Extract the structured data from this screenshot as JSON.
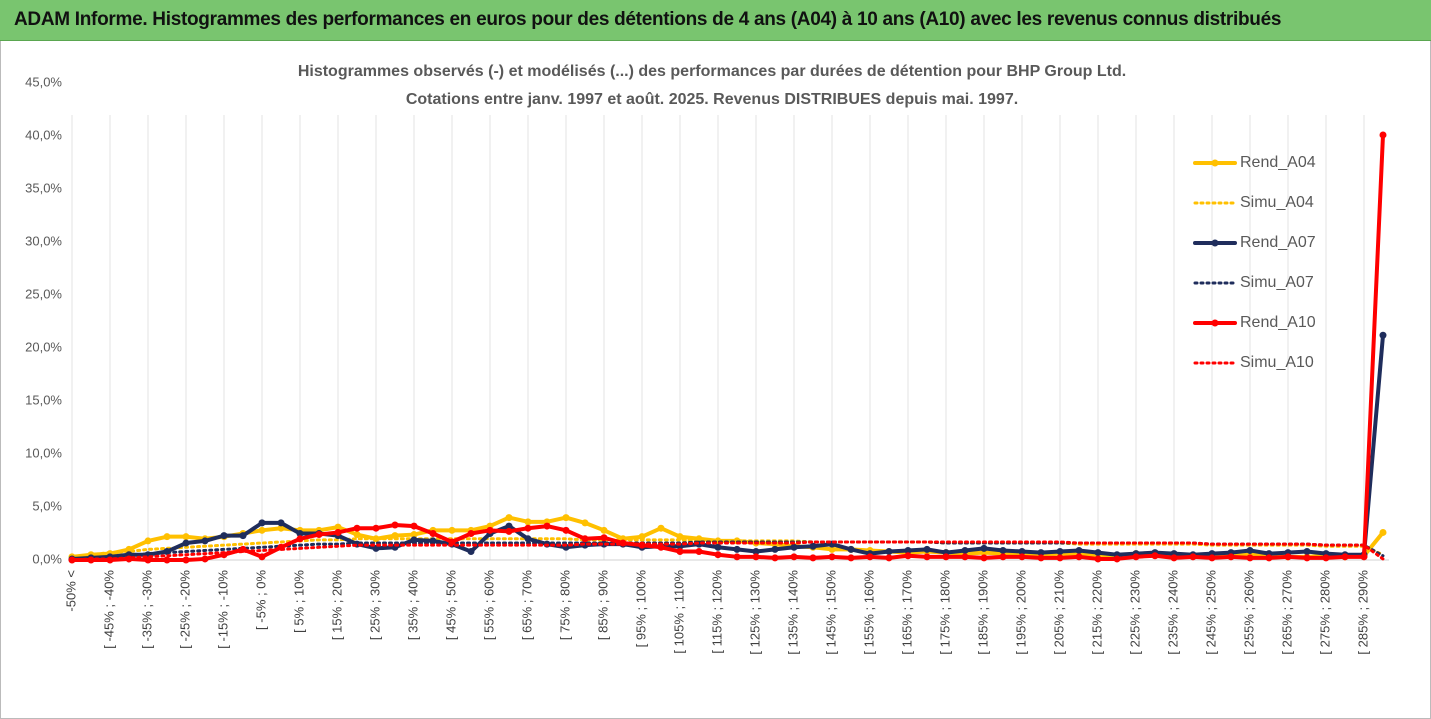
{
  "chart_data": {
    "type": "line",
    "header": "ADAM Informe. Histogrammes des performances en euros pour des détentions de 4 ans (A04) à 10 ans (A10) avec les revenus connus distribués",
    "title": "Histogrammes observés (-) et modélisés (...) des performances par durées de détention pour BHP Group Ltd.",
    "subtitle": "Cotations entre janv. 1997 et août. 2025. Revenus DISTRIBUES depuis mai. 1997.",
    "categories": [
      "-50% <",
      null,
      "[ -45% ; -40%",
      null,
      "[ -35% ; -30%",
      null,
      "[ -25% ; -20%",
      null,
      "[ -15% ; -10%",
      null,
      "[ -5% ; 0%",
      null,
      "[ 5% ; 10%",
      null,
      "[ 15% ; 20%",
      null,
      "[ 25% ; 30%",
      null,
      "[ 35% ; 40%",
      null,
      "[ 45% ; 50%",
      null,
      "[ 55% ; 60%",
      null,
      "[ 65% ; 70%",
      null,
      "[ 75% ; 80%",
      null,
      "[ 85% ; 90%",
      null,
      "[ 95% ; 100%",
      null,
      "[ 105% ; 110%",
      null,
      "[ 115% ; 120%",
      null,
      "[ 125% ; 130%",
      null,
      "[ 135% ; 140%",
      null,
      "[ 145% ; 150%",
      null,
      "[ 155% ; 160%",
      null,
      "[ 165% ; 170%",
      null,
      "[ 175% ; 180%",
      null,
      "[ 185% ; 190%",
      null,
      "[ 195% ; 200%",
      null,
      "[ 205% ; 210%",
      null,
      "[ 215% ; 220%",
      null,
      "[ 225% ; 230%",
      null,
      "[ 235% ; 240%",
      null,
      "[ 245% ; 250%",
      null,
      "[ 255% ; 260%",
      null,
      "[ 265% ; 270%",
      null,
      "[ 275% ; 280%",
      null,
      "[ 285% ; 290%",
      null
    ],
    "series": [
      {
        "name": "Rend_A04",
        "color": "#ffc000",
        "style": "solid",
        "marker": true,
        "values": [
          0.3,
          0.5,
          0.6,
          1.0,
          1.8,
          2.2,
          2.2,
          2.0,
          2.2,
          2.5,
          2.8,
          3.0,
          2.8,
          2.8,
          3.1,
          2.4,
          2.0,
          2.3,
          2.4,
          2.8,
          2.8,
          2.8,
          3.2,
          4.0,
          3.6,
          3.6,
          4.0,
          3.5,
          2.8,
          2.0,
          2.2,
          3.0,
          2.2,
          2.0,
          1.8,
          1.8,
          1.6,
          1.5,
          1.3,
          1.2,
          1.0,
          1.0,
          0.9,
          0.8,
          0.7,
          0.8,
          0.7,
          0.6,
          0.7,
          0.6,
          0.6,
          0.5,
          0.6,
          0.5,
          0.5,
          0.4,
          0.6,
          0.5,
          0.5,
          0.4,
          0.5,
          0.4,
          0.5,
          0.4,
          0.3,
          0.3,
          0.4,
          0.3,
          0.4,
          2.6
        ]
      },
      {
        "name": "Simu_A04",
        "color": "#ffc000",
        "style": "dotted",
        "marker": false,
        "values": [
          0.3,
          0.5,
          0.7,
          0.8,
          1.0,
          1.1,
          1.2,
          1.3,
          1.4,
          1.5,
          1.6,
          1.7,
          1.8,
          1.9,
          1.9,
          2.0,
          2.0,
          2.0,
          2.0,
          2.0,
          2.0,
          2.0,
          2.0,
          2.0,
          2.0,
          2.0,
          2.0,
          1.9,
          1.9,
          1.9,
          1.9,
          1.9,
          1.9,
          1.8,
          1.8,
          1.8,
          1.8,
          1.8,
          1.8,
          1.7,
          1.7,
          1.7,
          1.7,
          1.7,
          1.7,
          1.7,
          1.6,
          1.6,
          1.6,
          1.6,
          1.6,
          1.6,
          1.6,
          1.5,
          1.5,
          1.5,
          1.5,
          1.5,
          1.5,
          1.5,
          1.4,
          1.4,
          1.4,
          1.4,
          1.4,
          1.4,
          1.3,
          1.3,
          1.3,
          0.5
        ]
      },
      {
        "name": "Rend_A07",
        "color": "#1f2d5c",
        "style": "solid",
        "marker": true,
        "values": [
          0.1,
          0.2,
          0.3,
          0.5,
          0.5,
          0.8,
          1.6,
          1.8,
          2.3,
          2.3,
          3.5,
          3.5,
          2.5,
          2.5,
          2.3,
          1.5,
          1.1,
          1.2,
          1.9,
          1.8,
          1.5,
          0.8,
          2.5,
          3.2,
          2.0,
          1.5,
          1.2,
          1.4,
          1.5,
          1.5,
          1.2,
          1.3,
          1.3,
          1.5,
          1.2,
          1.0,
          0.8,
          1.0,
          1.2,
          1.3,
          1.5,
          1.0,
          0.6,
          0.8,
          0.9,
          1.0,
          0.7,
          0.9,
          1.1,
          0.9,
          0.8,
          0.7,
          0.8,
          0.9,
          0.7,
          0.5,
          0.6,
          0.7,
          0.6,
          0.5,
          0.6,
          0.7,
          0.9,
          0.6,
          0.7,
          0.8,
          0.6,
          0.5,
          0.5,
          21.2
        ]
      },
      {
        "name": "Simu_A07",
        "color": "#1f2d5c",
        "style": "dotted",
        "marker": false,
        "values": [
          0.1,
          0.2,
          0.3,
          0.4,
          0.6,
          0.7,
          0.8,
          0.9,
          1.0,
          1.1,
          1.2,
          1.3,
          1.4,
          1.5,
          1.5,
          1.6,
          1.6,
          1.6,
          1.6,
          1.6,
          1.6,
          1.6,
          1.6,
          1.6,
          1.6,
          1.6,
          1.6,
          1.6,
          1.6,
          1.6,
          1.6,
          1.6,
          1.6,
          1.7,
          1.7,
          1.7,
          1.7,
          1.7,
          1.7,
          1.7,
          1.7,
          1.7,
          1.7,
          1.7,
          1.7,
          1.7,
          1.6,
          1.6,
          1.6,
          1.6,
          1.6,
          1.6,
          1.6,
          1.6,
          1.6,
          1.6,
          1.6,
          1.6,
          1.6,
          1.6,
          1.5,
          1.5,
          1.5,
          1.5,
          1.5,
          1.5,
          1.4,
          1.4,
          1.4,
          0.4
        ]
      },
      {
        "name": "Rend_A10",
        "color": "#ff0000",
        "style": "solid",
        "marker": true,
        "values": [
          0,
          0,
          0,
          0.1,
          0,
          0,
          0,
          0.1,
          0.5,
          1.0,
          0.3,
          1.2,
          2.0,
          2.4,
          2.6,
          3.0,
          3.0,
          3.3,
          3.2,
          2.5,
          1.7,
          2.5,
          2.8,
          2.7,
          3.0,
          3.2,
          2.8,
          2.0,
          2.1,
          1.6,
          1.4,
          1.2,
          0.8,
          0.8,
          0.5,
          0.3,
          0.3,
          0.2,
          0.3,
          0.2,
          0.3,
          0.2,
          0.3,
          0.2,
          0.4,
          0.3,
          0.3,
          0.3,
          0.2,
          0.3,
          0.3,
          0.2,
          0.2,
          0.3,
          0.1,
          0.1,
          0.3,
          0.4,
          0.2,
          0.3,
          0.2,
          0.3,
          0.2,
          0.2,
          0.3,
          0.2,
          0.2,
          0.3,
          0.3,
          40.1
        ]
      },
      {
        "name": "Simu_A10",
        "color": "#ff0000",
        "style": "dotted",
        "marker": false,
        "values": [
          0.0,
          0.1,
          0.1,
          0.2,
          0.3,
          0.4,
          0.5,
          0.6,
          0.7,
          0.8,
          0.9,
          1.0,
          1.1,
          1.2,
          1.3,
          1.4,
          1.4,
          1.4,
          1.4,
          1.4,
          1.4,
          1.4,
          1.4,
          1.4,
          1.4,
          1.4,
          1.4,
          1.5,
          1.5,
          1.5,
          1.5,
          1.5,
          1.5,
          1.6,
          1.6,
          1.6,
          1.6,
          1.6,
          1.6,
          1.7,
          1.7,
          1.7,
          1.7,
          1.7,
          1.7,
          1.7,
          1.7,
          1.7,
          1.7,
          1.7,
          1.7,
          1.7,
          1.7,
          1.6,
          1.6,
          1.6,
          1.6,
          1.6,
          1.6,
          1.6,
          1.5,
          1.5,
          1.5,
          1.5,
          1.5,
          1.5,
          1.4,
          1.4,
          1.4,
          0.1
        ]
      }
    ],
    "ylim": [
      0,
      45
    ],
    "yticks": [
      {
        "value": 0,
        "label": "0,0%"
      },
      {
        "value": 5,
        "label": "5,0%"
      },
      {
        "value": 10,
        "label": "10,0%"
      },
      {
        "value": 15,
        "label": "15,0%"
      },
      {
        "value": 20,
        "label": "20,0%"
      },
      {
        "value": 25,
        "label": "25,0%"
      },
      {
        "value": 30,
        "label": "30,0%"
      },
      {
        "value": 35,
        "label": "35,0%"
      },
      {
        "value": 40,
        "label": "40,0%"
      },
      {
        "value": {
          "value": 45,
          "label": "45,0%"
        }
      }
    ],
    "grid": true,
    "legend": "right"
  }
}
